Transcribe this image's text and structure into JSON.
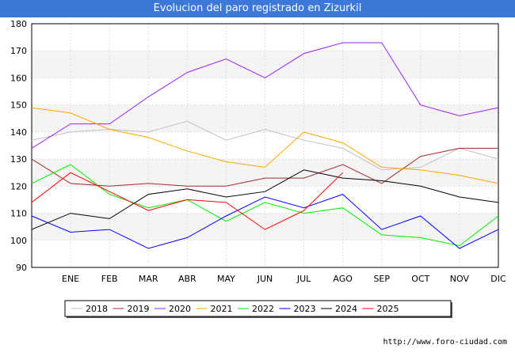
{
  "chart_data": {
    "type": "line",
    "title": "Evolucion del paro registrado en Zizurkil",
    "xlabel": "",
    "ylabel": "",
    "ylim": [
      90,
      180
    ],
    "yticks": [
      90,
      100,
      110,
      120,
      130,
      140,
      150,
      160,
      170,
      180
    ],
    "categories": [
      "",
      "ENE",
      "FEB",
      "MAR",
      "ABR",
      "MAY",
      "JUN",
      "JUL",
      "AGO",
      "SEP",
      "OCT",
      "NOV",
      "DIC"
    ],
    "grid": true,
    "legend_position": "bottom",
    "series": [
      {
        "name": "2018",
        "color": "#c0c0c0",
        "values": [
          137,
          140,
          141,
          140,
          144,
          137,
          141,
          137,
          134,
          126,
          127,
          134,
          130
        ]
      },
      {
        "name": "2019",
        "color": "#a52a2a",
        "values": [
          130,
          121,
          120,
          121,
          120,
          120,
          123,
          123,
          128,
          121,
          131,
          134,
          134
        ]
      },
      {
        "name": "2020",
        "color": "#a020f0",
        "values": [
          134,
          143,
          143,
          153,
          162,
          167,
          160,
          169,
          173,
          173,
          150,
          146,
          149
        ]
      },
      {
        "name": "2021",
        "color": "#ffa500",
        "values": [
          149,
          147,
          141,
          138,
          133,
          129,
          127,
          140,
          136,
          127,
          126,
          124,
          121
        ]
      },
      {
        "name": "2022",
        "color": "#00ee00",
        "values": [
          121,
          128,
          117,
          112,
          115,
          107,
          114,
          110,
          112,
          102,
          101,
          98,
          109
        ]
      },
      {
        "name": "2023",
        "color": "#0000ff",
        "values": [
          109,
          103,
          104,
          97,
          101,
          109,
          116,
          112,
          117,
          104,
          109,
          97,
          104
        ]
      },
      {
        "name": "2024",
        "color": "#000000",
        "values": [
          104,
          110,
          108,
          117,
          119,
          116,
          118,
          126,
          123,
          122,
          120,
          116,
          114
        ]
      },
      {
        "name": "2025",
        "color": "#ff0000",
        "values": [
          114,
          125,
          118,
          111,
          115,
          114,
          104,
          111,
          125,
          null,
          null,
          null,
          null
        ]
      }
    ]
  },
  "footer": {
    "source": "http://www.foro-ciudad.com"
  }
}
